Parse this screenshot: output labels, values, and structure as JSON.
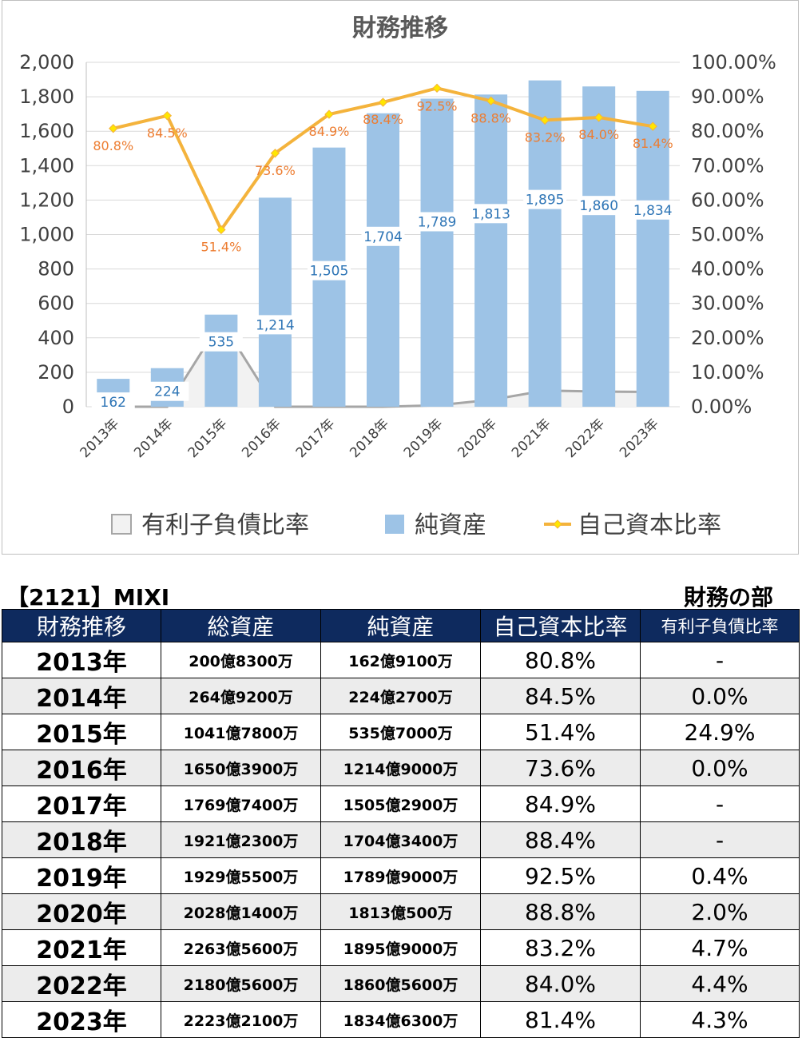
{
  "chart_data": {
    "type": "bar",
    "title": "財務推移",
    "categories": [
      "2013年",
      "2014年",
      "2015年",
      "2016年",
      "2017年",
      "2018年",
      "2019年",
      "2020年",
      "2021年",
      "2022年",
      "2023年"
    ],
    "left_axis": {
      "ylim": [
        0,
        2000
      ],
      "ticks": [
        "2,000",
        "1,800",
        "1,600",
        "1,400",
        "1,200",
        "1,000",
        "800",
        "600",
        "400",
        "200",
        "0"
      ]
    },
    "right_axis": {
      "ylim": [
        0,
        100
      ],
      "ticks": [
        "100.00%",
        "90.00%",
        "80.00%",
        "70.00%",
        "60.00%",
        "50.00%",
        "40.00%",
        "30.00%",
        "20.00%",
        "10.00%",
        "0.00%"
      ]
    },
    "series": [
      {
        "name": "有利子負債比率",
        "kind": "area",
        "axis": "right",
        "color": "#a6a6a6",
        "values": [
          0,
          0.0,
          24.9,
          0.0,
          0,
          0,
          0.4,
          2.0,
          4.7,
          4.4,
          4.3
        ]
      },
      {
        "name": "純資産",
        "kind": "bar",
        "axis": "left",
        "color": "#9dc3e6",
        "values": [
          162,
          224,
          535,
          1214,
          1505,
          1704,
          1789,
          1813,
          1895,
          1860,
          1834
        ],
        "labels": [
          "162",
          "224",
          "535",
          "1,214",
          "1,505",
          "1,704",
          "1,789",
          "1,813",
          "1,895",
          "1,860",
          "1,834"
        ]
      },
      {
        "name": "自己資本比率",
        "kind": "line",
        "axis": "right",
        "color": "#f4b33c",
        "values": [
          80.8,
          84.5,
          51.4,
          73.6,
          84.9,
          88.4,
          92.5,
          88.8,
          83.2,
          84.0,
          81.4
        ],
        "labels": [
          "80.8%",
          "84.5%",
          "51.4%",
          "73.6%",
          "84.9%",
          "88.4%",
          "92.5%",
          "88.8%",
          "83.2%",
          "84.0%",
          "81.4%"
        ]
      }
    ],
    "legend": "bottom",
    "grid": true
  },
  "table": {
    "company": "【2121】MIXI",
    "section": "財務の部",
    "headers": [
      "財務推移",
      "総資産",
      "純資産",
      "自己資本比率",
      "有利子負債比率"
    ],
    "rows": [
      [
        "2013年",
        "200億8300万",
        "162億9100万",
        "80.8%",
        "-"
      ],
      [
        "2014年",
        "264億9200万",
        "224億2700万",
        "84.5%",
        "0.0%"
      ],
      [
        "2015年",
        "1041億7800万",
        "535億7000万",
        "51.4%",
        "24.9%"
      ],
      [
        "2016年",
        "1650億3900万",
        "1214億9000万",
        "73.6%",
        "0.0%"
      ],
      [
        "2017年",
        "1769億7400万",
        "1505億2900万",
        "84.9%",
        "-"
      ],
      [
        "2018年",
        "1921億2300万",
        "1704億3400万",
        "88.4%",
        "-"
      ],
      [
        "2019年",
        "1929億5500万",
        "1789億9000万",
        "92.5%",
        "0.4%"
      ],
      [
        "2020年",
        "2028億1400万",
        "1813億500万",
        "88.8%",
        "2.0%"
      ],
      [
        "2021年",
        "2263億5600万",
        "1895億9000万",
        "83.2%",
        "4.7%"
      ],
      [
        "2022年",
        "2180億5600万",
        "1860億5600万",
        "84.0%",
        "4.4%"
      ],
      [
        "2023年",
        "2223億2100万",
        "1834億6300万",
        "81.4%",
        "4.3%"
      ]
    ]
  }
}
